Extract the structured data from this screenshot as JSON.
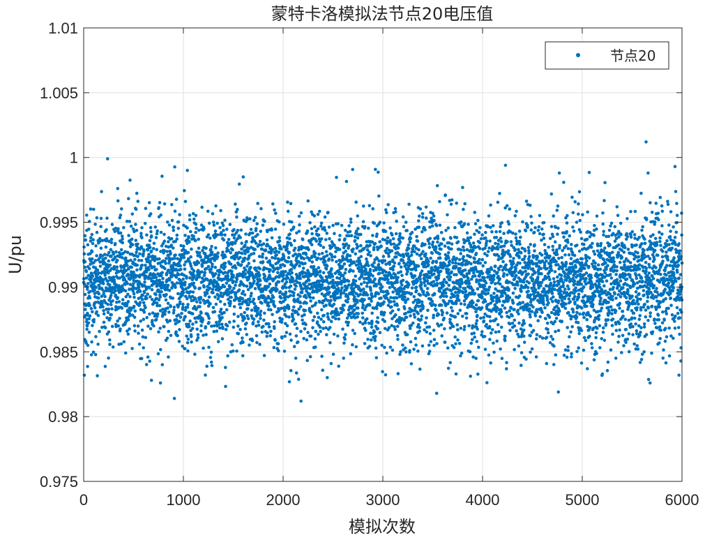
{
  "chart_data": {
    "type": "scatter",
    "title": "蒙特卡洛模拟法节点20电压值",
    "xlabel": "模拟次数",
    "ylabel": "U/pu",
    "xlim": [
      0,
      6000
    ],
    "ylim": [
      0.975,
      1.01
    ],
    "xticks": [
      0,
      1000,
      2000,
      3000,
      4000,
      5000,
      6000
    ],
    "xtick_labels": [
      "0",
      "1000",
      "2000",
      "3000",
      "4000",
      "5000",
      "6000"
    ],
    "yticks": [
      0.975,
      0.98,
      0.985,
      0.99,
      0.995,
      1.0,
      1.005,
      1.01
    ],
    "ytick_labels": [
      "0.975",
      "0.98",
      "0.985",
      "0.99",
      "0.995",
      "1",
      "1.005",
      "1.01"
    ],
    "grid": true,
    "legend_position": "top-right",
    "series": [
      {
        "name": "节点20",
        "color": "#0072BD",
        "marker": "dot",
        "n_points": 6000,
        "mean": 0.9905,
        "std": 0.0025,
        "notable_points": [
          {
            "x": 240,
            "y": 0.9999
          },
          {
            "x": 1040,
            "y": 0.999
          },
          {
            "x": 1600,
            "y": 0.9985
          },
          {
            "x": 4230,
            "y": 0.9994
          },
          {
            "x": 4770,
            "y": 0.9988
          },
          {
            "x": 5640,
            "y": 1.0012
          },
          {
            "x": 5660,
            "y": 0.9988
          },
          {
            "x": 5930,
            "y": 0.9993
          },
          {
            "x": 910,
            "y": 0.9814
          },
          {
            "x": 2180,
            "y": 0.9812
          },
          {
            "x": 3540,
            "y": 0.9818
          },
          {
            "x": 4760,
            "y": 0.9819
          },
          {
            "x": 770,
            "y": 0.9826
          },
          {
            "x": 5680,
            "y": 0.9826
          },
          {
            "x": 5970,
            "y": 0.9832
          },
          {
            "x": 680,
            "y": 0.9828
          }
        ]
      }
    ]
  }
}
